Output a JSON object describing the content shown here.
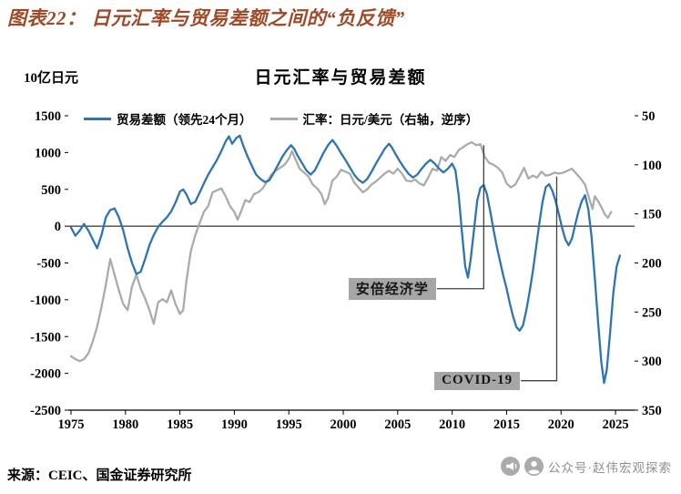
{
  "header": {
    "title": "图表22： 日元汇率与贸易差额之间的“负反馈”"
  },
  "colors": {
    "accent": "#9F4A28",
    "blue": "#2E74B5",
    "gray": "#ABABAB",
    "annotation_bg": "#A6A6A6",
    "pointer": "#404040"
  },
  "chart": {
    "unit_label": "10亿日元",
    "title": "日元汇率与贸易差额"
  },
  "chart_data": {
    "type": "line",
    "title": "日元汇率与贸易差额",
    "unit": "10亿日元",
    "x_axis": {
      "ticks": [
        1975,
        1980,
        1985,
        1990,
        1995,
        2000,
        2005,
        2010,
        2015,
        2020,
        2025
      ],
      "range": [
        1974.75,
        2026.75
      ]
    },
    "y_left": {
      "ticks": [
        1500,
        1000,
        500,
        0,
        -500,
        -1000,
        -1500,
        -2000,
        -2500
      ],
      "range": [
        -2500,
        1500
      ],
      "zero_line": true
    },
    "y_right": {
      "ticks": [
        50,
        100,
        150,
        200,
        250,
        300,
        350
      ],
      "range": [
        50,
        350
      ],
      "inverted": true
    },
    "legend_position": "top",
    "grid": false,
    "series": [
      {
        "name": "贸易差额（领先24个月）",
        "axis": "left",
        "color": "#2E74B5",
        "points": [
          [
            1975,
            -20
          ],
          [
            1975.4,
            -130
          ],
          [
            1975.8,
            -60
          ],
          [
            1976.2,
            30
          ],
          [
            1976.6,
            -60
          ],
          [
            1977,
            -180
          ],
          [
            1977.4,
            -300
          ],
          [
            1977.8,
            -120
          ],
          [
            1978.2,
            120
          ],
          [
            1978.6,
            220
          ],
          [
            1979,
            240
          ],
          [
            1979.4,
            120
          ],
          [
            1979.8,
            -60
          ],
          [
            1980.2,
            -300
          ],
          [
            1980.6,
            -500
          ],
          [
            1981,
            -650
          ],
          [
            1981.4,
            -620
          ],
          [
            1981.8,
            -450
          ],
          [
            1982.2,
            -260
          ],
          [
            1982.6,
            -120
          ],
          [
            1983,
            -10
          ],
          [
            1983.4,
            60
          ],
          [
            1983.8,
            120
          ],
          [
            1984.2,
            200
          ],
          [
            1984.6,
            320
          ],
          [
            1985,
            470
          ],
          [
            1985.3,
            500
          ],
          [
            1985.6,
            430
          ],
          [
            1986,
            300
          ],
          [
            1986.4,
            330
          ],
          [
            1986.8,
            450
          ],
          [
            1987.2,
            580
          ],
          [
            1987.6,
            700
          ],
          [
            1988,
            800
          ],
          [
            1988.4,
            900
          ],
          [
            1988.8,
            1020
          ],
          [
            1989.2,
            1150
          ],
          [
            1989.5,
            1220
          ],
          [
            1989.8,
            1120
          ],
          [
            1990.2,
            1200
          ],
          [
            1990.5,
            1230
          ],
          [
            1990.8,
            1100
          ],
          [
            1991.2,
            950
          ],
          [
            1991.6,
            820
          ],
          [
            1992,
            700
          ],
          [
            1992.4,
            640
          ],
          [
            1992.8,
            600
          ],
          [
            1993.2,
            620
          ],
          [
            1993.6,
            720
          ],
          [
            1994,
            830
          ],
          [
            1994.4,
            940
          ],
          [
            1994.8,
            1030
          ],
          [
            1995.2,
            1100
          ],
          [
            1995.5,
            1050
          ],
          [
            1995.8,
            960
          ],
          [
            1996.2,
            860
          ],
          [
            1996.6,
            760
          ],
          [
            1997,
            700
          ],
          [
            1997.4,
            760
          ],
          [
            1997.8,
            880
          ],
          [
            1998.2,
            1000
          ],
          [
            1998.6,
            1100
          ],
          [
            1999,
            1170
          ],
          [
            1999.4,
            1090
          ],
          [
            1999.8,
            990
          ],
          [
            2000.2,
            900
          ],
          [
            2000.6,
            800
          ],
          [
            2001,
            700
          ],
          [
            2001.4,
            630
          ],
          [
            2001.8,
            590
          ],
          [
            2002.2,
            640
          ],
          [
            2002.6,
            740
          ],
          [
            2003,
            850
          ],
          [
            2003.4,
            950
          ],
          [
            2003.8,
            1050
          ],
          [
            2004.2,
            1120
          ],
          [
            2004.5,
            1060
          ],
          [
            2004.8,
            980
          ],
          [
            2005.2,
            880
          ],
          [
            2005.6,
            790
          ],
          [
            2006,
            710
          ],
          [
            2006.4,
            660
          ],
          [
            2006.8,
            700
          ],
          [
            2007.2,
            780
          ],
          [
            2007.6,
            850
          ],
          [
            2008,
            900
          ],
          [
            2008.4,
            850
          ],
          [
            2008.8,
            780
          ],
          [
            2009.2,
            730
          ],
          [
            2009.6,
            780
          ],
          [
            2010,
            850
          ],
          [
            2010.3,
            760
          ],
          [
            2010.6,
            420
          ],
          [
            2010.9,
            -80
          ],
          [
            2011.2,
            -550
          ],
          [
            2011.45,
            -700
          ],
          [
            2011.7,
            -450
          ],
          [
            2012,
            -50
          ],
          [
            2012.3,
            350
          ],
          [
            2012.6,
            520
          ],
          [
            2012.9,
            560
          ],
          [
            2013.2,
            430
          ],
          [
            2013.5,
            200
          ],
          [
            2013.8,
            -50
          ],
          [
            2014.1,
            -280
          ],
          [
            2014.4,
            -480
          ],
          [
            2014.7,
            -680
          ],
          [
            2015,
            -850
          ],
          [
            2015.3,
            -1050
          ],
          [
            2015.6,
            -1230
          ],
          [
            2015.9,
            -1370
          ],
          [
            2016.2,
            -1420
          ],
          [
            2016.5,
            -1350
          ],
          [
            2016.8,
            -1150
          ],
          [
            2017.1,
            -900
          ],
          [
            2017.4,
            -620
          ],
          [
            2017.7,
            -300
          ],
          [
            2018,
            30
          ],
          [
            2018.3,
            330
          ],
          [
            2018.6,
            530
          ],
          [
            2018.9,
            570
          ],
          [
            2019.2,
            480
          ],
          [
            2019.5,
            340
          ],
          [
            2019.8,
            160
          ],
          [
            2020.1,
            -30
          ],
          [
            2020.4,
            -180
          ],
          [
            2020.7,
            -260
          ],
          [
            2021,
            -170
          ],
          [
            2021.3,
            20
          ],
          [
            2021.6,
            200
          ],
          [
            2021.9,
            340
          ],
          [
            2022.2,
            420
          ],
          [
            2022.5,
            230
          ],
          [
            2022.8,
            -150
          ],
          [
            2023.1,
            -700
          ],
          [
            2023.4,
            -1300
          ],
          [
            2023.7,
            -1850
          ],
          [
            2023.95,
            -2130
          ],
          [
            2024.2,
            -1950
          ],
          [
            2024.5,
            -1450
          ],
          [
            2024.8,
            -900
          ],
          [
            2025.1,
            -550
          ],
          [
            2025.4,
            -400
          ]
        ]
      },
      {
        "name": "汇率：日元/美元（右轴，逆序）",
        "axis": "right",
        "color": "#ABABAB",
        "points": [
          [
            1975,
            295
          ],
          [
            1975.4,
            298
          ],
          [
            1975.8,
            300
          ],
          [
            1976.2,
            298
          ],
          [
            1976.6,
            292
          ],
          [
            1977,
            280
          ],
          [
            1977.4,
            265
          ],
          [
            1977.8,
            245
          ],
          [
            1978.2,
            222
          ],
          [
            1978.6,
            196
          ],
          [
            1979,
            212
          ],
          [
            1979.4,
            228
          ],
          [
            1979.8,
            242
          ],
          [
            1980.2,
            248
          ],
          [
            1980.6,
            224
          ],
          [
            1981,
            212
          ],
          [
            1981.4,
            226
          ],
          [
            1981.8,
            236
          ],
          [
            1982.2,
            248
          ],
          [
            1982.6,
            262
          ],
          [
            1983,
            240
          ],
          [
            1983.4,
            237
          ],
          [
            1983.8,
            240
          ],
          [
            1984.2,
            228
          ],
          [
            1984.6,
            242
          ],
          [
            1985,
            252
          ],
          [
            1985.3,
            248
          ],
          [
            1985.6,
            218
          ],
          [
            1986,
            188
          ],
          [
            1986.4,
            172
          ],
          [
            1986.8,
            160
          ],
          [
            1987.2,
            148
          ],
          [
            1987.6,
            142
          ],
          [
            1988,
            128
          ],
          [
            1988.4,
            126
          ],
          [
            1988.8,
            124
          ],
          [
            1989.2,
            132
          ],
          [
            1989.6,
            142
          ],
          [
            1990,
            148
          ],
          [
            1990.3,
            156
          ],
          [
            1990.6,
            148
          ],
          [
            1991,
            136
          ],
          [
            1991.4,
            138
          ],
          [
            1991.8,
            130
          ],
          [
            1992.2,
            128
          ],
          [
            1992.6,
            124
          ],
          [
            1993,
            117
          ],
          [
            1993.4,
            110
          ],
          [
            1993.8,
            106
          ],
          [
            1994.2,
            103
          ],
          [
            1994.6,
            100
          ],
          [
            1995,
            94
          ],
          [
            1995.3,
            86
          ],
          [
            1995.6,
            94
          ],
          [
            1996,
            104
          ],
          [
            1996.4,
            108
          ],
          [
            1996.8,
            112
          ],
          [
            1997.2,
            120
          ],
          [
            1997.6,
            124
          ],
          [
            1998,
            130
          ],
          [
            1998.3,
            140
          ],
          [
            1998.6,
            134
          ],
          [
            1999,
            116
          ],
          [
            1999.4,
            112
          ],
          [
            1999.8,
            105
          ],
          [
            2000.2,
            107
          ],
          [
            2000.6,
            109
          ],
          [
            2001,
            118
          ],
          [
            2001.4,
            123
          ],
          [
            2001.8,
            128
          ],
          [
            2002.2,
            125
          ],
          [
            2002.6,
            120
          ],
          [
            2003,
            117
          ],
          [
            2003.4,
            113
          ],
          [
            2003.8,
            109
          ],
          [
            2004.2,
            106
          ],
          [
            2004.6,
            109
          ],
          [
            2005,
            104
          ],
          [
            2005.4,
            109
          ],
          [
            2005.8,
            116
          ],
          [
            2006.2,
            117
          ],
          [
            2006.6,
            115
          ],
          [
            2007,
            119
          ],
          [
            2007.4,
            121
          ],
          [
            2007.8,
            113
          ],
          [
            2008.2,
            104
          ],
          [
            2008.6,
            106
          ],
          [
            2009,
            92
          ],
          [
            2009.4,
            96
          ],
          [
            2009.8,
            90
          ],
          [
            2010.2,
            92
          ],
          [
            2010.6,
            85
          ],
          [
            2011,
            82
          ],
          [
            2011.4,
            79
          ],
          [
            2011.8,
            77
          ],
          [
            2012.2,
            80
          ],
          [
            2012.6,
            79
          ],
          [
            2013,
            92
          ],
          [
            2013.4,
            98
          ],
          [
            2013.8,
            100
          ],
          [
            2014.2,
            103
          ],
          [
            2014.6,
            108
          ],
          [
            2015,
            119
          ],
          [
            2015.4,
            123
          ],
          [
            2015.8,
            120
          ],
          [
            2016.2,
            112
          ],
          [
            2016.6,
            103
          ],
          [
            2017,
            114
          ],
          [
            2017.4,
            111
          ],
          [
            2017.8,
            113
          ],
          [
            2018.2,
            107
          ],
          [
            2018.6,
            111
          ],
          [
            2019,
            110
          ],
          [
            2019.4,
            108
          ],
          [
            2019.8,
            109
          ],
          [
            2020.2,
            108
          ],
          [
            2020.6,
            106
          ],
          [
            2021,
            104
          ],
          [
            2021.4,
            109
          ],
          [
            2021.8,
            114
          ],
          [
            2022.2,
            120
          ],
          [
            2022.6,
            135
          ],
          [
            2022.9,
            145
          ],
          [
            2023.1,
            132
          ],
          [
            2023.4,
            137
          ],
          [
            2023.7,
            143
          ],
          [
            2024,
            150
          ],
          [
            2024.3,
            154
          ],
          [
            2024.6,
            148
          ]
        ]
      }
    ],
    "annotations": [
      {
        "label": "安倍经济学",
        "box_center": {
          "year": 2004.5,
          "value_left": -850
        },
        "pointer": {
          "elbow_year": 2012.9,
          "target_value_right": 80
        }
      },
      {
        "label": "COVID-19",
        "box_center": {
          "year": 2012.3,
          "value_left": -2100
        },
        "pointer": {
          "elbow_year": 2019.6,
          "target_value_right": 112
        }
      }
    ]
  },
  "footer": {
    "source": "来源：CEIC、国金证券研究所",
    "badge": "公众号·赵伟宏观探索"
  }
}
